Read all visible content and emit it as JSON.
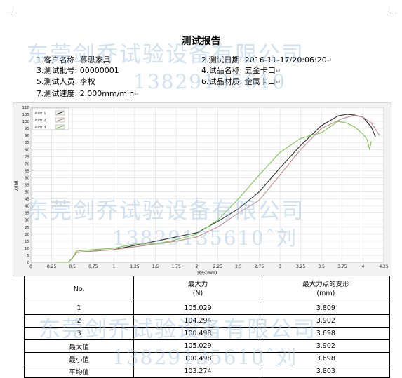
{
  "report": {
    "title": "测试报告",
    "fields": [
      {
        "label": "1.客户名称:",
        "value": "慕思家具"
      },
      {
        "label": "2.测试日期:",
        "value": "2016-11-17/20:06:20"
      },
      {
        "label": "3.测试批号:",
        "value": "00000001"
      },
      {
        "label": "4.试品名称:",
        "value": "五金卡口"
      },
      {
        "label": "5.测试人员:",
        "value": "李权"
      },
      {
        "label": "6.试品材质:",
        "value": "金属卡口"
      },
      {
        "label": "7.测试速度:",
        "value": "2.000mm/min"
      }
    ],
    "line_mark": "↵"
  },
  "watermark": {
    "company": "东莞剑乔试验设备有限公司",
    "phone": "13829135610",
    "phone_contact": "13829135610ˆ刘"
  },
  "chart_data": {
    "type": "line",
    "xlabel": "变形(mm)",
    "ylabel": "力(N)",
    "xlim": [
      0,
      4.25
    ],
    "ylim": [
      0,
      110
    ],
    "x_ticks": [
      "0",
      "0.25",
      "0.5",
      "0.75",
      "1",
      "1.25",
      "1.5",
      "1.75",
      "2",
      "2.25",
      "2.5",
      "2.75",
      "3",
      "3.25",
      "3.5",
      "3.75",
      "4",
      "4.25"
    ],
    "y_ticks": [
      "0",
      "5",
      "10",
      "15",
      "20",
      "25",
      "30",
      "35",
      "40",
      "45",
      "50",
      "55",
      "60",
      "65",
      "70",
      "75",
      "80",
      "85",
      "90",
      "95",
      "100",
      "105",
      "110"
    ],
    "grid": true,
    "legend_position": "top-left",
    "series": [
      {
        "name": "Plot 1",
        "color": "#2a2a2a",
        "x": [
          0.3,
          0.45,
          0.5,
          0.55,
          0.75,
          1.0,
          1.25,
          1.5,
          1.75,
          2.0,
          2.25,
          2.5,
          2.75,
          3.0,
          3.25,
          3.5,
          3.7,
          3.81,
          3.9,
          4.0,
          4.1,
          4.15
        ],
        "y": [
          0,
          0,
          3,
          7,
          8,
          9,
          12,
          15,
          18,
          21,
          29,
          38,
          50,
          67,
          83,
          97,
          104,
          105,
          104.5,
          103,
          96,
          89
        ]
      },
      {
        "name": "Plot 2",
        "color": "#c48a8a",
        "x": [
          0.3,
          0.45,
          0.5,
          0.55,
          0.75,
          1.0,
          1.25,
          1.5,
          1.75,
          2.0,
          2.25,
          2.5,
          2.75,
          3.0,
          3.25,
          3.5,
          3.75,
          3.9,
          4.0,
          4.1,
          4.2
        ],
        "y": [
          0,
          0,
          3,
          7,
          8,
          9,
          11,
          13,
          15,
          18,
          25,
          35,
          44,
          62,
          80,
          95,
          102,
          104.3,
          103,
          99,
          90
        ]
      },
      {
        "name": "Plot 3",
        "color": "#77c84a",
        "x": [
          0.3,
          0.45,
          0.5,
          0.55,
          0.75,
          1.0,
          1.25,
          1.5,
          1.75,
          2.0,
          2.25,
          2.5,
          2.75,
          3.0,
          3.25,
          3.5,
          3.7,
          3.8,
          3.9,
          4.0,
          4.05,
          4.08,
          4.1
        ],
        "y": [
          0,
          0,
          3,
          8,
          9,
          10,
          13,
          13,
          16,
          20,
          30,
          45,
          62,
          78,
          88,
          92,
          100,
          99,
          96,
          91,
          87,
          80,
          86
        ]
      }
    ]
  },
  "table": {
    "headers": [
      "No.",
      "最大力\n(N)",
      "最大力点的变形\n(mm)"
    ],
    "rows": [
      [
        "1",
        "105.029",
        "3.809"
      ],
      [
        "2",
        "104.294",
        "3.902"
      ],
      [
        "3",
        "100.498",
        "3.698"
      ],
      [
        "最大值",
        "105.029",
        "3.902"
      ],
      [
        "最小值",
        "100.498",
        "3.698"
      ],
      [
        "平均值",
        "103.274",
        "3.803"
      ]
    ]
  }
}
